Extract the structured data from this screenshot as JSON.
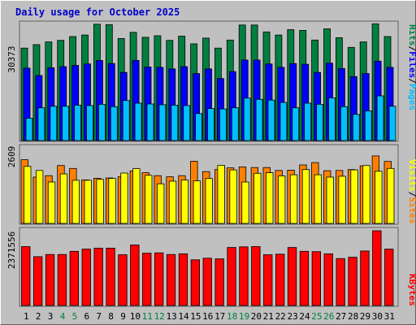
{
  "title": "Daily usage for October 2025",
  "legend": {
    "pages": "Pages",
    "files": "Files",
    "hits": "Hits",
    "sites": "Sites",
    "visits": "Visits",
    "kbytes": "KBytes",
    "sep": "/"
  },
  "colors": {
    "hits": "#008040",
    "files": "#0000ff",
    "pages": "#00c0ff",
    "visits": "#ffff00",
    "sites": "#ff8000",
    "kbytes": "#ff0000",
    "weekend_label": "#008040",
    "weekday_label": "#000000",
    "title": "#0000cc"
  },
  "chart_data": [
    {
      "type": "bar",
      "ylim": [
        0,
        30373
      ],
      "y_label_value": "30373",
      "categories": [
        "1",
        "2",
        "3",
        "4",
        "5",
        "6",
        "7",
        "8",
        "9",
        "10",
        "11",
        "12",
        "13",
        "14",
        "15",
        "16",
        "17",
        "18",
        "19",
        "20",
        "21",
        "22",
        "23",
        "24",
        "25",
        "26",
        "27",
        "28",
        "29",
        "30",
        "31"
      ],
      "weekend_days": [
        "4",
        "5",
        "11",
        "12",
        "18",
        "19",
        "25",
        "26"
      ],
      "series": [
        {
          "name": "Hits",
          "values": [
            24000,
            24900,
            25600,
            26000,
            27000,
            27400,
            30200,
            30100,
            26500,
            28100,
            26800,
            27200,
            26000,
            27100,
            25100,
            26600,
            24000,
            26100,
            30000,
            30000,
            28200,
            27400,
            28800,
            28600,
            26100,
            29000,
            26700,
            24200,
            25600,
            30300,
            27000
          ]
        },
        {
          "name": "Files",
          "values": [
            18800,
            16900,
            18900,
            19200,
            19500,
            19900,
            20800,
            20000,
            17700,
            20800,
            19100,
            19000,
            18600,
            19200,
            17400,
            18600,
            16100,
            17900,
            20900,
            20900,
            19900,
            19000,
            20000,
            19800,
            17700,
            20100,
            18700,
            16600,
            17400,
            20600,
            19000
          ]
        },
        {
          "name": "Pages",
          "values": [
            5800,
            8500,
            8900,
            8900,
            9200,
            9100,
            9400,
            8800,
            10400,
            9700,
            9500,
            9300,
            9200,
            9100,
            7000,
            8300,
            8200,
            8500,
            11000,
            10700,
            10500,
            9900,
            8500,
            9700,
            9400,
            11100,
            8800,
            6800,
            7700,
            11600,
            8900
          ]
        }
      ]
    },
    {
      "type": "bar",
      "ylim": [
        0,
        2609
      ],
      "y_label_value": "2609",
      "categories": [
        "1",
        "2",
        "3",
        "4",
        "5",
        "6",
        "7",
        "8",
        "9",
        "10",
        "11",
        "12",
        "13",
        "14",
        "15",
        "16",
        "17",
        "18",
        "19",
        "20",
        "21",
        "22",
        "23",
        "24",
        "25",
        "26",
        "27",
        "28",
        "29",
        "30",
        "31"
      ],
      "series": [
        {
          "name": "Sites",
          "values": [
            2200,
            1600,
            1650,
            2000,
            1900,
            1500,
            1560,
            1570,
            1610,
            1810,
            1750,
            1650,
            1610,
            1650,
            2150,
            1790,
            1860,
            1920,
            1950,
            1930,
            1930,
            1830,
            1840,
            2020,
            2100,
            1820,
            1830,
            1860,
            1990,
            2330,
            2140
          ]
        },
        {
          "name": "Visits",
          "values": [
            1970,
            1830,
            1430,
            1710,
            1490,
            1490,
            1520,
            1550,
            1740,
            1890,
            1660,
            1370,
            1460,
            1500,
            1470,
            1550,
            2010,
            1850,
            1430,
            1730,
            1750,
            1640,
            1680,
            1860,
            1680,
            1600,
            1630,
            1850,
            2000,
            1800,
            1900
          ]
        }
      ]
    },
    {
      "type": "bar",
      "ylim": [
        0,
        2371556
      ],
      "y_label_value": "2371556",
      "categories": [
        "1",
        "2",
        "3",
        "4",
        "5",
        "6",
        "7",
        "8",
        "9",
        "10",
        "11",
        "12",
        "13",
        "14",
        "15",
        "16",
        "17",
        "18",
        "19",
        "20",
        "21",
        "22",
        "23",
        "24",
        "25",
        "26",
        "27",
        "28",
        "29",
        "30",
        "31"
      ],
      "series": [
        {
          "name": "KBytes",
          "values": [
            1870000,
            1550000,
            1620000,
            1620000,
            1720000,
            1790000,
            1820000,
            1820000,
            1610000,
            1920000,
            1660000,
            1670000,
            1620000,
            1640000,
            1450000,
            1500000,
            1480000,
            1840000,
            1860000,
            1870000,
            1610000,
            1630000,
            1840000,
            1720000,
            1710000,
            1640000,
            1490000,
            1530000,
            1730000,
            2371556,
            1790000
          ]
        }
      ]
    }
  ]
}
